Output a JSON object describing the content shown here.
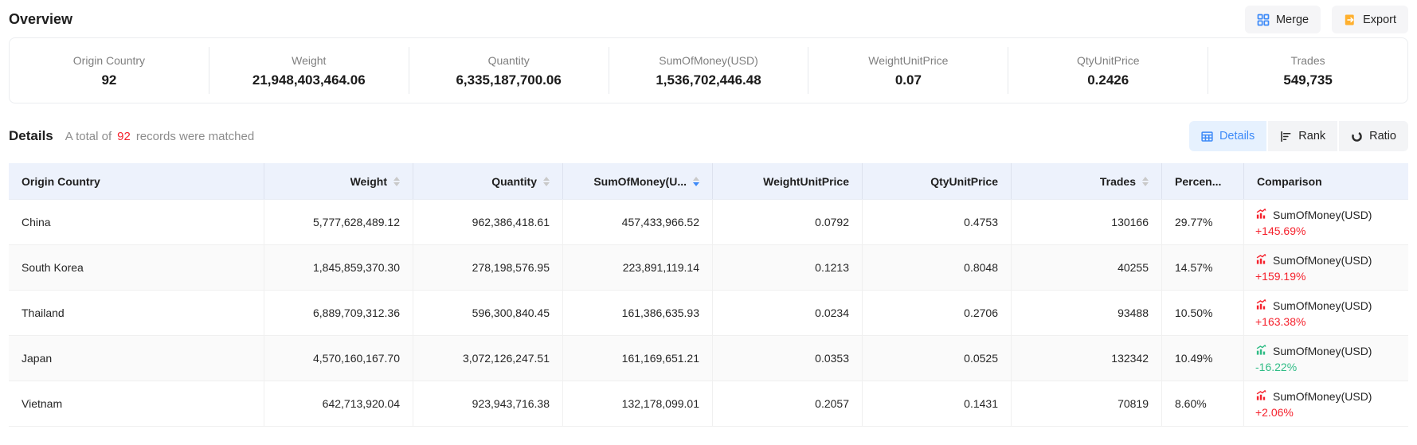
{
  "header": {
    "title": "Overview",
    "merge_label": "Merge",
    "export_label": "Export"
  },
  "overview_stats": [
    {
      "label": "Origin Country",
      "value": "92"
    },
    {
      "label": "Weight",
      "value": "21,948,403,464.06"
    },
    {
      "label": "Quantity",
      "value": "6,335,187,700.06"
    },
    {
      "label": "SumOfMoney(USD)",
      "value": "1,536,702,446.48"
    },
    {
      "label": "WeightUnitPrice",
      "value": "0.07"
    },
    {
      "label": "QtyUnitPrice",
      "value": "0.2426"
    },
    {
      "label": "Trades",
      "value": "549,735"
    }
  ],
  "details": {
    "title": "Details",
    "prefix": "A total of",
    "count": "92",
    "suffix": "records were matched"
  },
  "view_tabs": [
    {
      "label": "Details",
      "icon": "table-icon",
      "active": true
    },
    {
      "label": "Rank",
      "icon": "rank-icon",
      "active": false
    },
    {
      "label": "Ratio",
      "icon": "ratio-icon",
      "active": false
    }
  ],
  "table": {
    "columns": [
      {
        "label": "Origin Country",
        "align": "left",
        "sortable": false,
        "sort": null
      },
      {
        "label": "Weight",
        "align": "right",
        "sortable": true,
        "sort": null
      },
      {
        "label": "Quantity",
        "align": "right",
        "sortable": true,
        "sort": null
      },
      {
        "label": "SumOfMoney(U...",
        "align": "right",
        "sortable": true,
        "sort": "desc"
      },
      {
        "label": "WeightUnitPrice",
        "align": "right",
        "sortable": false,
        "sort": null
      },
      {
        "label": "QtyUnitPrice",
        "align": "right",
        "sortable": false,
        "sort": null
      },
      {
        "label": "Trades",
        "align": "right",
        "sortable": true,
        "sort": null
      },
      {
        "label": "Percen...",
        "align": "left",
        "sortable": false,
        "sort": null
      },
      {
        "label": "Comparison",
        "align": "left",
        "sortable": false,
        "sort": null
      }
    ],
    "rows": [
      {
        "origin_country": "China",
        "weight": "5,777,628,489.12",
        "quantity": "962,386,418.61",
        "sum_of_money": "457,433,966.52",
        "weight_unit_price": "0.0792",
        "qty_unit_price": "0.4753",
        "trades": "130166",
        "percentage": "29.77%",
        "comparison": {
          "metric": "SumOfMoney(USD)",
          "change": "+145.69%",
          "direction": "up"
        }
      },
      {
        "origin_country": "South Korea",
        "weight": "1,845,859,370.30",
        "quantity": "278,198,576.95",
        "sum_of_money": "223,891,119.14",
        "weight_unit_price": "0.1213",
        "qty_unit_price": "0.8048",
        "trades": "40255",
        "percentage": "14.57%",
        "comparison": {
          "metric": "SumOfMoney(USD)",
          "change": "+159.19%",
          "direction": "up"
        }
      },
      {
        "origin_country": "Thailand",
        "weight": "6,889,709,312.36",
        "quantity": "596,300,840.45",
        "sum_of_money": "161,386,635.93",
        "weight_unit_price": "0.0234",
        "qty_unit_price": "0.2706",
        "trades": "93488",
        "percentage": "10.50%",
        "comparison": {
          "metric": "SumOfMoney(USD)",
          "change": "+163.38%",
          "direction": "up"
        }
      },
      {
        "origin_country": "Japan",
        "weight": "4,570,160,167.70",
        "quantity": "3,072,126,247.51",
        "sum_of_money": "161,169,651.21",
        "weight_unit_price": "0.0353",
        "qty_unit_price": "0.0525",
        "trades": "132342",
        "percentage": "10.49%",
        "comparison": {
          "metric": "SumOfMoney(USD)",
          "change": "-16.22%",
          "direction": "down"
        }
      },
      {
        "origin_country": "Vietnam",
        "weight": "642,713,920.04",
        "quantity": "923,943,716.38",
        "sum_of_money": "132,178,099.01",
        "weight_unit_price": "0.2057",
        "qty_unit_price": "0.1431",
        "trades": "70819",
        "percentage": "8.60%",
        "comparison": {
          "metric": "SumOfMoney(USD)",
          "change": "+2.06%",
          "direction": "up"
        }
      }
    ]
  },
  "colors": {
    "accent_blue": "#3d8af8",
    "up_red": "#f5222d",
    "down_green": "#2fbc85",
    "export_orange": "#ffb02e",
    "header_bg": "#edf2fc"
  }
}
